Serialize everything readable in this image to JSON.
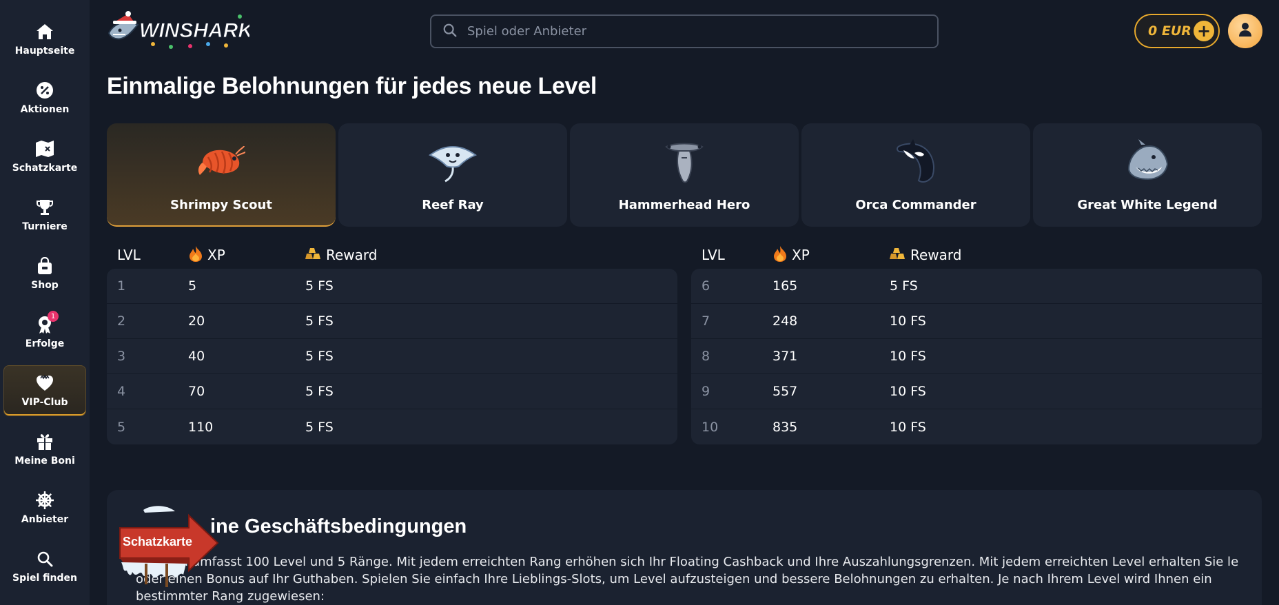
{
  "sidebar": {
    "items": [
      {
        "label": "Hauptseite",
        "icon": "home-icon"
      },
      {
        "label": "Aktionen",
        "icon": "percent-icon"
      },
      {
        "label": "Schatzkarte",
        "icon": "map-icon"
      },
      {
        "label": "Turniere",
        "icon": "trophy-icon"
      },
      {
        "label": "Shop",
        "icon": "shopping-bag-icon"
      },
      {
        "label": "Erfolge",
        "icon": "medal-icon",
        "badge": "1"
      },
      {
        "label": "VIP-Club",
        "icon": "vip-heart-icon",
        "active": true
      },
      {
        "label": "Meine Boni",
        "icon": "gift-icon"
      },
      {
        "label": "Anbieter",
        "icon": "ship-wheel-icon"
      },
      {
        "label": "Spiel finden",
        "icon": "search-icon"
      }
    ]
  },
  "header": {
    "logo_text": "WINSHARK",
    "search_placeholder": "Spiel oder Anbieter",
    "balance": "0 EUR"
  },
  "page": {
    "title": "Einmalige Belohnungen für jedes neue Level"
  },
  "ranks": [
    {
      "name": "Shrimpy Scout",
      "icon": "shrimp-icon",
      "active": true
    },
    {
      "name": "Reef Ray",
      "icon": "ray-icon"
    },
    {
      "name": "Hammerhead Hero",
      "icon": "hammerhead-icon"
    },
    {
      "name": "Orca Commander",
      "icon": "orca-icon"
    },
    {
      "name": "Great White Legend",
      "icon": "great-white-shark-icon"
    }
  ],
  "table": {
    "headers": {
      "lvl": "LVL",
      "xp": "XP",
      "reward": "Reward"
    },
    "left": [
      {
        "lvl": "1",
        "xp": "5",
        "reward": "5 FS"
      },
      {
        "lvl": "2",
        "xp": "20",
        "reward": "5 FS"
      },
      {
        "lvl": "3",
        "xp": "40",
        "reward": "5 FS"
      },
      {
        "lvl": "4",
        "xp": "70",
        "reward": "5 FS"
      },
      {
        "lvl": "5",
        "xp": "110",
        "reward": "5 FS"
      }
    ],
    "right": [
      {
        "lvl": "6",
        "xp": "165",
        "reward": "5 FS"
      },
      {
        "lvl": "7",
        "xp": "248",
        "reward": "10 FS"
      },
      {
        "lvl": "8",
        "xp": "371",
        "reward": "10 FS"
      },
      {
        "lvl": "9",
        "xp": "557",
        "reward": "10 FS"
      },
      {
        "lvl": "10",
        "xp": "835",
        "reward": "10 FS"
      }
    ]
  },
  "terms": {
    "title": "ine Geschäftsbedingungen",
    "text": "ogramm umfasst 100 Level und 5 Ränge. Mit jedem erreichten Rang erhöhen sich Ihr Floating Cashback und Ihre Auszahlungsgrenzen. Mit jedem erreichten Level erhalten Sie              le oder einen Bonus auf Ihr Guthaben. Spielen Sie einfach Ihre Lieblings-Slots, um Level aufzusteigen und bessere Belohnungen zu erhalten. Je nach Ihrem Level wird Ihnen ein bestimmter Rang zugewiesen:"
  },
  "floating": {
    "treasure_label": "Schatzkarte"
  },
  "colors": {
    "background": "#141a26",
    "sidebar": "#1b2230",
    "card": "#1d2432",
    "accent_gold": "#f0b63a",
    "badge_pink": "#e8336c"
  }
}
